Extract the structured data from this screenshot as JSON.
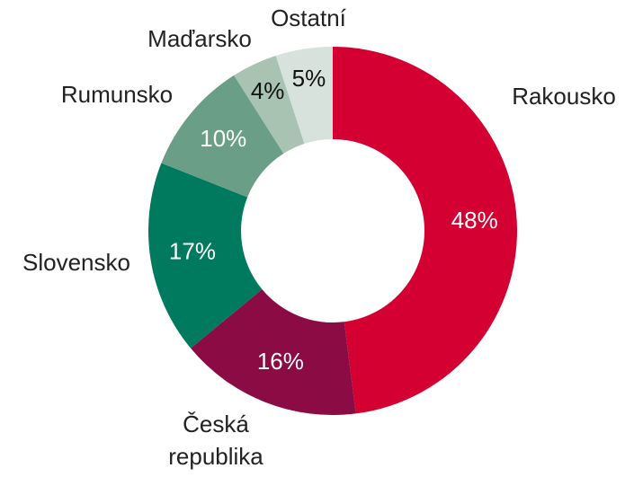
{
  "chart_data": {
    "type": "donut",
    "categories": [
      "Rakousko",
      "Česká republika",
      "Slovensko",
      "Rumunsko",
      "Maďarsko",
      "Ostatní"
    ],
    "values": [
      48,
      16,
      17,
      10,
      4,
      5
    ],
    "value_labels": [
      "48%",
      "16%",
      "17%",
      "10%",
      "4%",
      "5%"
    ],
    "colors": [
      "#d50032",
      "#8b0b45",
      "#007a5e",
      "#6a9e86",
      "#a8c3b2",
      "#d7e2dc"
    ]
  }
}
